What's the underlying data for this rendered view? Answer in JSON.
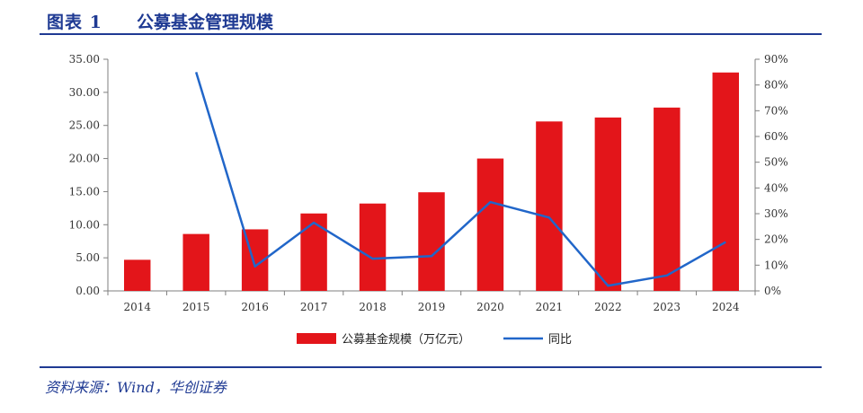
{
  "header": {
    "label": "图表 1",
    "title": "公募基金管理规模"
  },
  "source_note": "资料来源：Wind，华创证券",
  "colors": {
    "bar": "#e3151a",
    "line": "#2166c9",
    "rule": "#1f3a93"
  },
  "chart_data": {
    "type": "bar",
    "categories": [
      "2014",
      "2015",
      "2016",
      "2017",
      "2018",
      "2019",
      "2020",
      "2021",
      "2022",
      "2023",
      "2024"
    ],
    "series": [
      {
        "name": "公募基金规模（万亿元）",
        "type": "bar",
        "axis": "left",
        "values": [
          4.7,
          8.6,
          9.3,
          11.7,
          13.2,
          14.9,
          20.0,
          25.6,
          26.2,
          27.7,
          33.0
        ]
      },
      {
        "name": "同比",
        "type": "line",
        "axis": "right",
        "values": [
          null,
          85,
          9.5,
          26.5,
          12.5,
          13.5,
          34.5,
          28.5,
          2,
          6,
          19
        ]
      }
    ],
    "ylim": [
      0,
      35
    ],
    "yticks": [
      "0.00",
      "5.00",
      "10.00",
      "15.00",
      "20.00",
      "25.00",
      "30.00",
      "35.00"
    ],
    "y2lim": [
      0,
      90
    ],
    "y2ticks": [
      "0%",
      "10%",
      "20%",
      "30%",
      "40%",
      "50%",
      "60%",
      "70%",
      "80%",
      "90%"
    ],
    "legend": "bottom-center",
    "grid": false
  }
}
